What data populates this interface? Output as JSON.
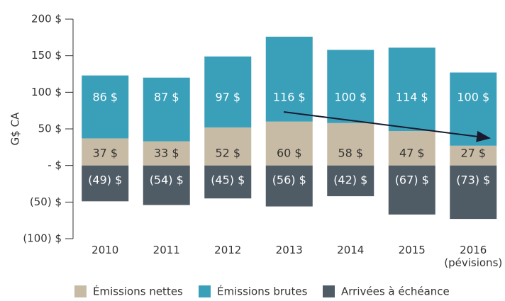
{
  "chart_data": {
    "type": "stacked_bar",
    "y_label": "G$ CA",
    "categories": [
      "2010",
      "2011",
      "2012",
      "2013",
      "2014",
      "2015",
      "2016\n(pévisions)"
    ],
    "series": [
      {
        "name": "Émissions nettes",
        "color": "#c8bba5",
        "values": [
          37,
          33,
          52,
          60,
          58,
          47,
          27
        ],
        "value_labels": [
          "37 $",
          "33 $",
          "52 $",
          "60 $",
          "58 $",
          "47 $",
          "27 $"
        ]
      },
      {
        "name": "Émissions brutes",
        "color": "#3aa0ba",
        "values": [
          86,
          87,
          97,
          116,
          100,
          114,
          100
        ],
        "value_labels": [
          "86 $",
          "87 $",
          "97 $",
          "116 $",
          "100 $",
          "114 $",
          "100 $"
        ]
      },
      {
        "name": "Arrivées à échéance",
        "color": "#4f5c66",
        "values": [
          -49,
          -54,
          -45,
          -56,
          -42,
          -67,
          -73
        ],
        "value_labels": [
          "(49) $",
          "(54) $",
          "(45) $",
          "(56) $",
          "(42) $",
          "(67) $",
          "(73) $"
        ]
      }
    ],
    "ylim": [
      -100,
      200
    ],
    "yticks": [
      {
        "value": -100,
        "label": "(100) $"
      },
      {
        "value": -50,
        "label": "(50) $"
      },
      {
        "value": 0,
        "label": "- $"
      },
      {
        "value": 50,
        "label": "50 $"
      },
      {
        "value": 100,
        "label": "100 $"
      },
      {
        "value": 150,
        "label": "150 $"
      },
      {
        "value": 200,
        "label": "200 $"
      }
    ]
  }
}
